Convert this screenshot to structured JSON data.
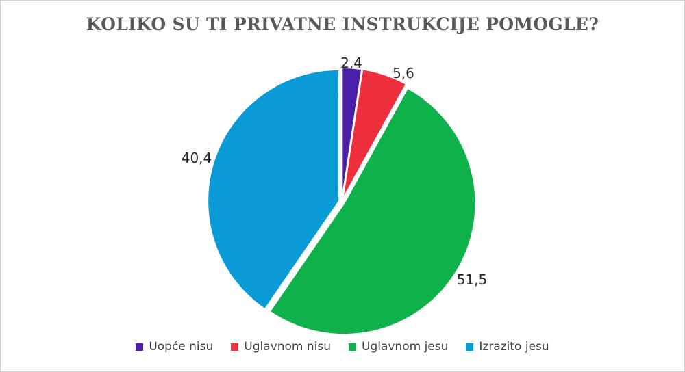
{
  "chart_data": {
    "type": "pie",
    "title": "KOLIKO SU TI PRIVATNE INSTRUKCIJE POMOGLE?",
    "categories": [
      "Uopće nisu",
      "Uglavnom nisu",
      "Uglavnom jesu",
      "Izrazito jesu"
    ],
    "values": [
      2.4,
      5.6,
      51.5,
      40.4
    ],
    "data_labels": [
      "2,4",
      "5,6",
      "51,5",
      "40,4"
    ],
    "colors": [
      "#4b1fa8",
      "#ee2f3e",
      "#0fb14a",
      "#0a9ad6"
    ],
    "legend_position": "bottom",
    "start_angle": "12 o'clock",
    "direction": "clockwise"
  }
}
